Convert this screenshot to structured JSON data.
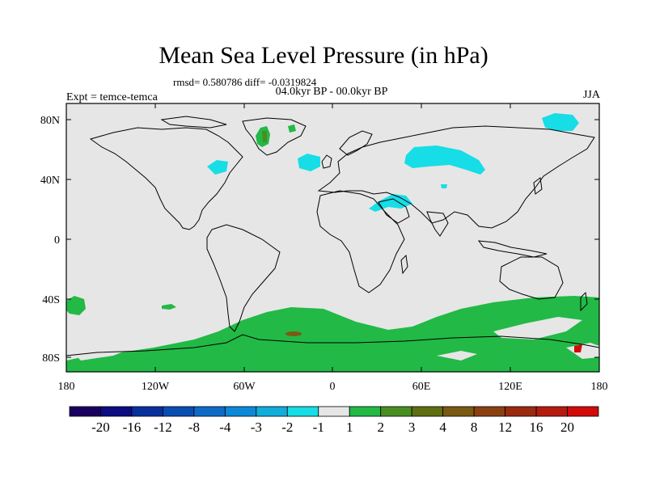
{
  "header": {
    "title": "Mean Sea Level Pressure (in hPa)",
    "stats": "rmsd= 0.580786 diff= -0.0319824",
    "period": "04.0kyr BP - 00.0kyr BP",
    "experiment": "Expt = temce-temca",
    "season": "JJA"
  },
  "axes": {
    "lat_ticks": [
      "80N",
      "40N",
      "0",
      "40S",
      "80S"
    ],
    "lon_ticks": [
      "180",
      "120W",
      "60W",
      "0",
      "60E",
      "120E",
      "180"
    ]
  },
  "colorbar": {
    "labels": [
      "-20",
      "-16",
      "-12",
      "-8",
      "-4",
      "-3",
      "-2",
      "-1",
      "1",
      "2",
      "3",
      "4",
      "8",
      "12",
      "16",
      "20"
    ],
    "colors": [
      "#1a0060",
      "#0c0d80",
      "#07309c",
      "#0a4db2",
      "#0e6ac6",
      "#0c88d8",
      "#10acdc",
      "#16dde6",
      "#e6e6e6",
      "#22b946",
      "#4a8e22",
      "#5e6e10",
      "#7a5a12",
      "#8a4010",
      "#9a2a10",
      "#b41a10",
      "#d20a0a"
    ]
  },
  "colors": {
    "background_no_change": "#e6e6e6",
    "positive_1_2": "#22b946",
    "negative_-2_-1": "#16dde6"
  }
}
